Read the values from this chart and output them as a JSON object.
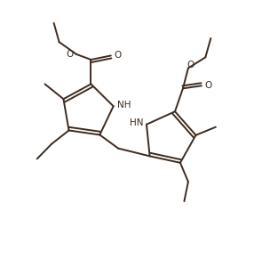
{
  "line_color": "#3d2b1f",
  "bg_color": "#ffffff",
  "line_width": 1.4,
  "font_size": 7.5,
  "figsize": [
    3.04,
    3.1
  ],
  "dpi": 100,
  "xlim": [
    0,
    10
  ],
  "ylim": [
    0,
    10
  ]
}
